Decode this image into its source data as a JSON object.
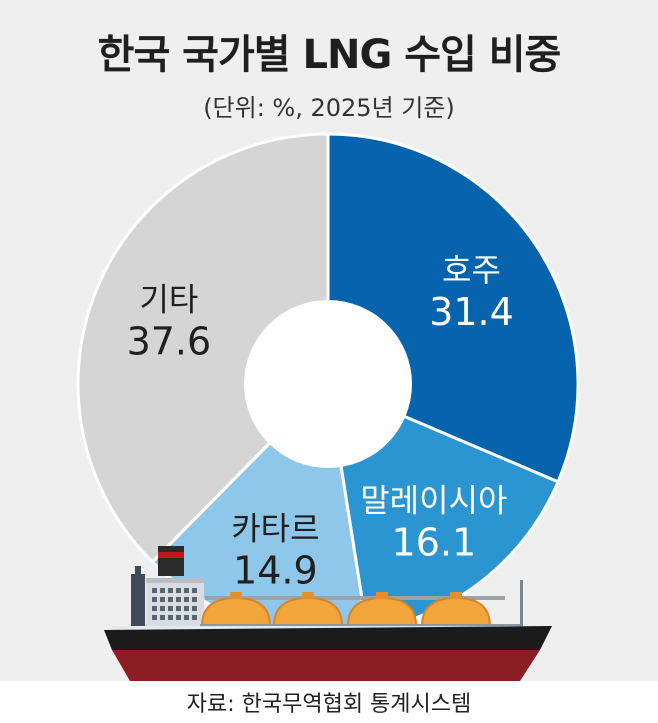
{
  "chart_data": {
    "type": "pie",
    "title": "한국 국가별 LNG 수입 비중",
    "subtitle": "(단위: %, 2025년 기준)",
    "categories": [
      "호주",
      "말레이시아",
      "카타르",
      "기타"
    ],
    "values": [
      31.4,
      16.1,
      14.9,
      37.6
    ],
    "colors": [
      "#0663ad",
      "#2b95d1",
      "#8ec7ea",
      "#d5d5d5"
    ],
    "label_colors": [
      "#ffffff",
      "#ffffff",
      "#1f1f1f",
      "#1f1f1f"
    ],
    "style": "donut",
    "start": "12 o'clock, clockwise"
  },
  "source": "자료: 한국무역협회 통계시스템",
  "illustration": "lng-carrier-ship"
}
